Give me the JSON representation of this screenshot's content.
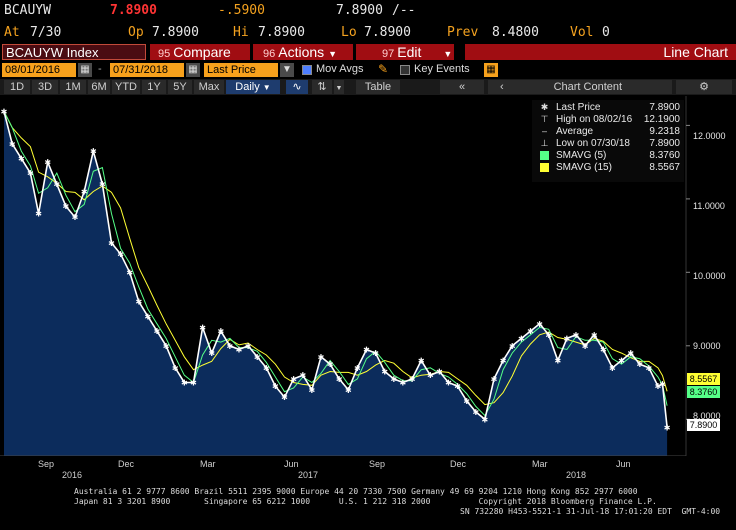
{
  "quote": {
    "ticker": "BCAUYW",
    "last": "7.8900",
    "change": "-.5900",
    "last2": "7.8900",
    "dashes": "/--",
    "at_label": "At",
    "at_value": "7/30",
    "op_label": "Op",
    "op_value": "7.8900",
    "hi_label": "Hi",
    "hi_value": "7.8900",
    "lo_label": "Lo",
    "lo_value": "7.8900",
    "prev_label": "Prev",
    "prev_value": "8.4800",
    "vol_label": "Vol",
    "vol_value": "0"
  },
  "menubar": {
    "security": "BCAUYW Index",
    "compare_num": "95",
    "compare": "Compare",
    "actions_num": "96",
    "actions": "Actions",
    "edit_num": "97",
    "edit": "Edit",
    "title": "Line Chart"
  },
  "datebar": {
    "start": "08/01/2016",
    "end": "07/31/2018",
    "field": "Last Price",
    "mov_avgs": "Mov Avgs",
    "key_events": "Key Events"
  },
  "toolbar": {
    "periods": [
      "1D",
      "3D",
      "1M",
      "6M",
      "YTD",
      "1Y",
      "5Y",
      "Max"
    ],
    "frequency": "Daily",
    "table": "Table",
    "chart_content": "Chart Content"
  },
  "legend": {
    "last_price": {
      "label": "Last Price",
      "value": "7.8900"
    },
    "high": {
      "label": "High on 08/02/16",
      "value": "12.1900"
    },
    "average": {
      "label": "Average",
      "value": "9.2318"
    },
    "low": {
      "label": "Low on 07/30/18",
      "value": "7.8900"
    },
    "smavg5": {
      "label": "SMAVG (5)",
      "value": "8.3760",
      "color": "#55ff88"
    },
    "smavg15": {
      "label": "SMAVG (15)",
      "value": "8.5567",
      "color": "#ffff33"
    }
  },
  "colors": {
    "accent_red": "#a00d12",
    "orange": "#f7a11c",
    "area_fill": "#0c2c5c",
    "price_line": "#ffffff",
    "smavg5": "#55ff88",
    "smavg15": "#ffff33"
  },
  "footer": {
    "line1": "Australia 61 2 9777 8600 Brazil 5511 2395 9000 Europe 44 20 7330 7500 Germany 49 69 9204 1210 Hong Kong 852 2977 6000",
    "line2": "Japan 81 3 3201 8900       Singapore 65 6212 1000      U.S. 1 212 318 2000          Copyright 2018 Bloomberg Finance L.P.",
    "line3": "SN 732280 H453-5521-1 31-Jul-18 17:01:20 EDT  GMT-4:00"
  },
  "chart_data": {
    "type": "line",
    "title": "",
    "xlabel": "",
    "ylabel": "",
    "x_month_labels": [
      "Sep",
      "Dec",
      "Mar",
      "Jun",
      "Sep",
      "Dec",
      "Mar",
      "Jun"
    ],
    "x_year_labels": [
      "2016",
      "2017",
      "2018"
    ],
    "y_ticks": [
      "8.0000",
      "9.0000",
      "10.0000",
      "11.0000",
      "12.0000"
    ],
    "ylim": [
      7.5,
      12.4
    ],
    "xlim": [
      "2016-08-01",
      "2018-07-31"
    ],
    "grid": false,
    "legend_position": "top-right",
    "last_tags": [
      {
        "label": "8.5567",
        "color": "#ffff33"
      },
      {
        "label": "8.3760",
        "color": "#55ff88"
      },
      {
        "label": "7.8900",
        "color": "#ffffff"
      }
    ],
    "series": [
      {
        "name": "Last Price",
        "x": [
          "2016-08-01",
          "2016-08-10",
          "2016-08-20",
          "2016-08-30",
          "2016-09-08",
          "2016-09-18",
          "2016-09-28",
          "2016-10-08",
          "2016-10-18",
          "2016-10-28",
          "2016-11-07",
          "2016-11-17",
          "2016-11-27",
          "2016-12-07",
          "2016-12-17",
          "2016-12-27",
          "2017-01-06",
          "2017-01-16",
          "2017-01-26",
          "2017-02-05",
          "2017-02-15",
          "2017-02-25",
          "2017-03-07",
          "2017-03-17",
          "2017-03-27",
          "2017-04-06",
          "2017-04-16",
          "2017-04-26",
          "2017-05-06",
          "2017-05-16",
          "2017-05-26",
          "2017-06-05",
          "2017-06-15",
          "2017-06-25",
          "2017-07-05",
          "2017-07-15",
          "2017-07-25",
          "2017-08-04",
          "2017-08-14",
          "2017-08-24",
          "2017-09-03",
          "2017-09-13",
          "2017-09-23",
          "2017-10-03",
          "2017-10-13",
          "2017-10-23",
          "2017-11-02",
          "2017-11-12",
          "2017-11-22",
          "2017-12-02",
          "2017-12-12",
          "2017-12-22",
          "2018-01-01",
          "2018-01-11",
          "2018-01-21",
          "2018-01-31",
          "2018-02-10",
          "2018-02-20",
          "2018-03-02",
          "2018-03-12",
          "2018-03-22",
          "2018-04-01",
          "2018-04-11",
          "2018-04-21",
          "2018-05-01",
          "2018-05-11",
          "2018-05-21",
          "2018-05-31",
          "2018-06-10",
          "2018-06-20",
          "2018-06-30",
          "2018-07-10",
          "2018-07-20",
          "2018-07-25",
          "2018-07-30"
        ],
        "values": [
          12.19,
          11.75,
          11.55,
          11.35,
          10.8,
          11.5,
          11.2,
          10.9,
          10.75,
          11.1,
          11.65,
          11.2,
          10.4,
          10.25,
          10.0,
          9.6,
          9.4,
          9.2,
          9.0,
          8.7,
          8.5,
          8.5,
          9.25,
          8.9,
          9.2,
          9.0,
          8.95,
          9.0,
          8.85,
          8.7,
          8.45,
          8.3,
          8.55,
          8.6,
          8.4,
          8.85,
          8.75,
          8.55,
          8.4,
          8.7,
          8.95,
          8.9,
          8.65,
          8.55,
          8.5,
          8.55,
          8.8,
          8.6,
          8.65,
          8.5,
          8.45,
          8.25,
          8.1,
          8.0,
          8.55,
          8.8,
          9.0,
          9.1,
          9.2,
          9.3,
          9.15,
          8.8,
          9.1,
          9.15,
          9.0,
          9.15,
          8.95,
          8.7,
          8.8,
          8.9,
          8.75,
          8.7,
          8.45,
          8.48,
          7.89
        ]
      },
      {
        "name": "SMAVG (5)",
        "values_source": "5-period simple moving average of Last Price",
        "last": 8.376
      },
      {
        "name": "SMAVG (15)",
        "values_source": "15-period simple moving average of Last Price",
        "last": 8.5567
      }
    ]
  }
}
